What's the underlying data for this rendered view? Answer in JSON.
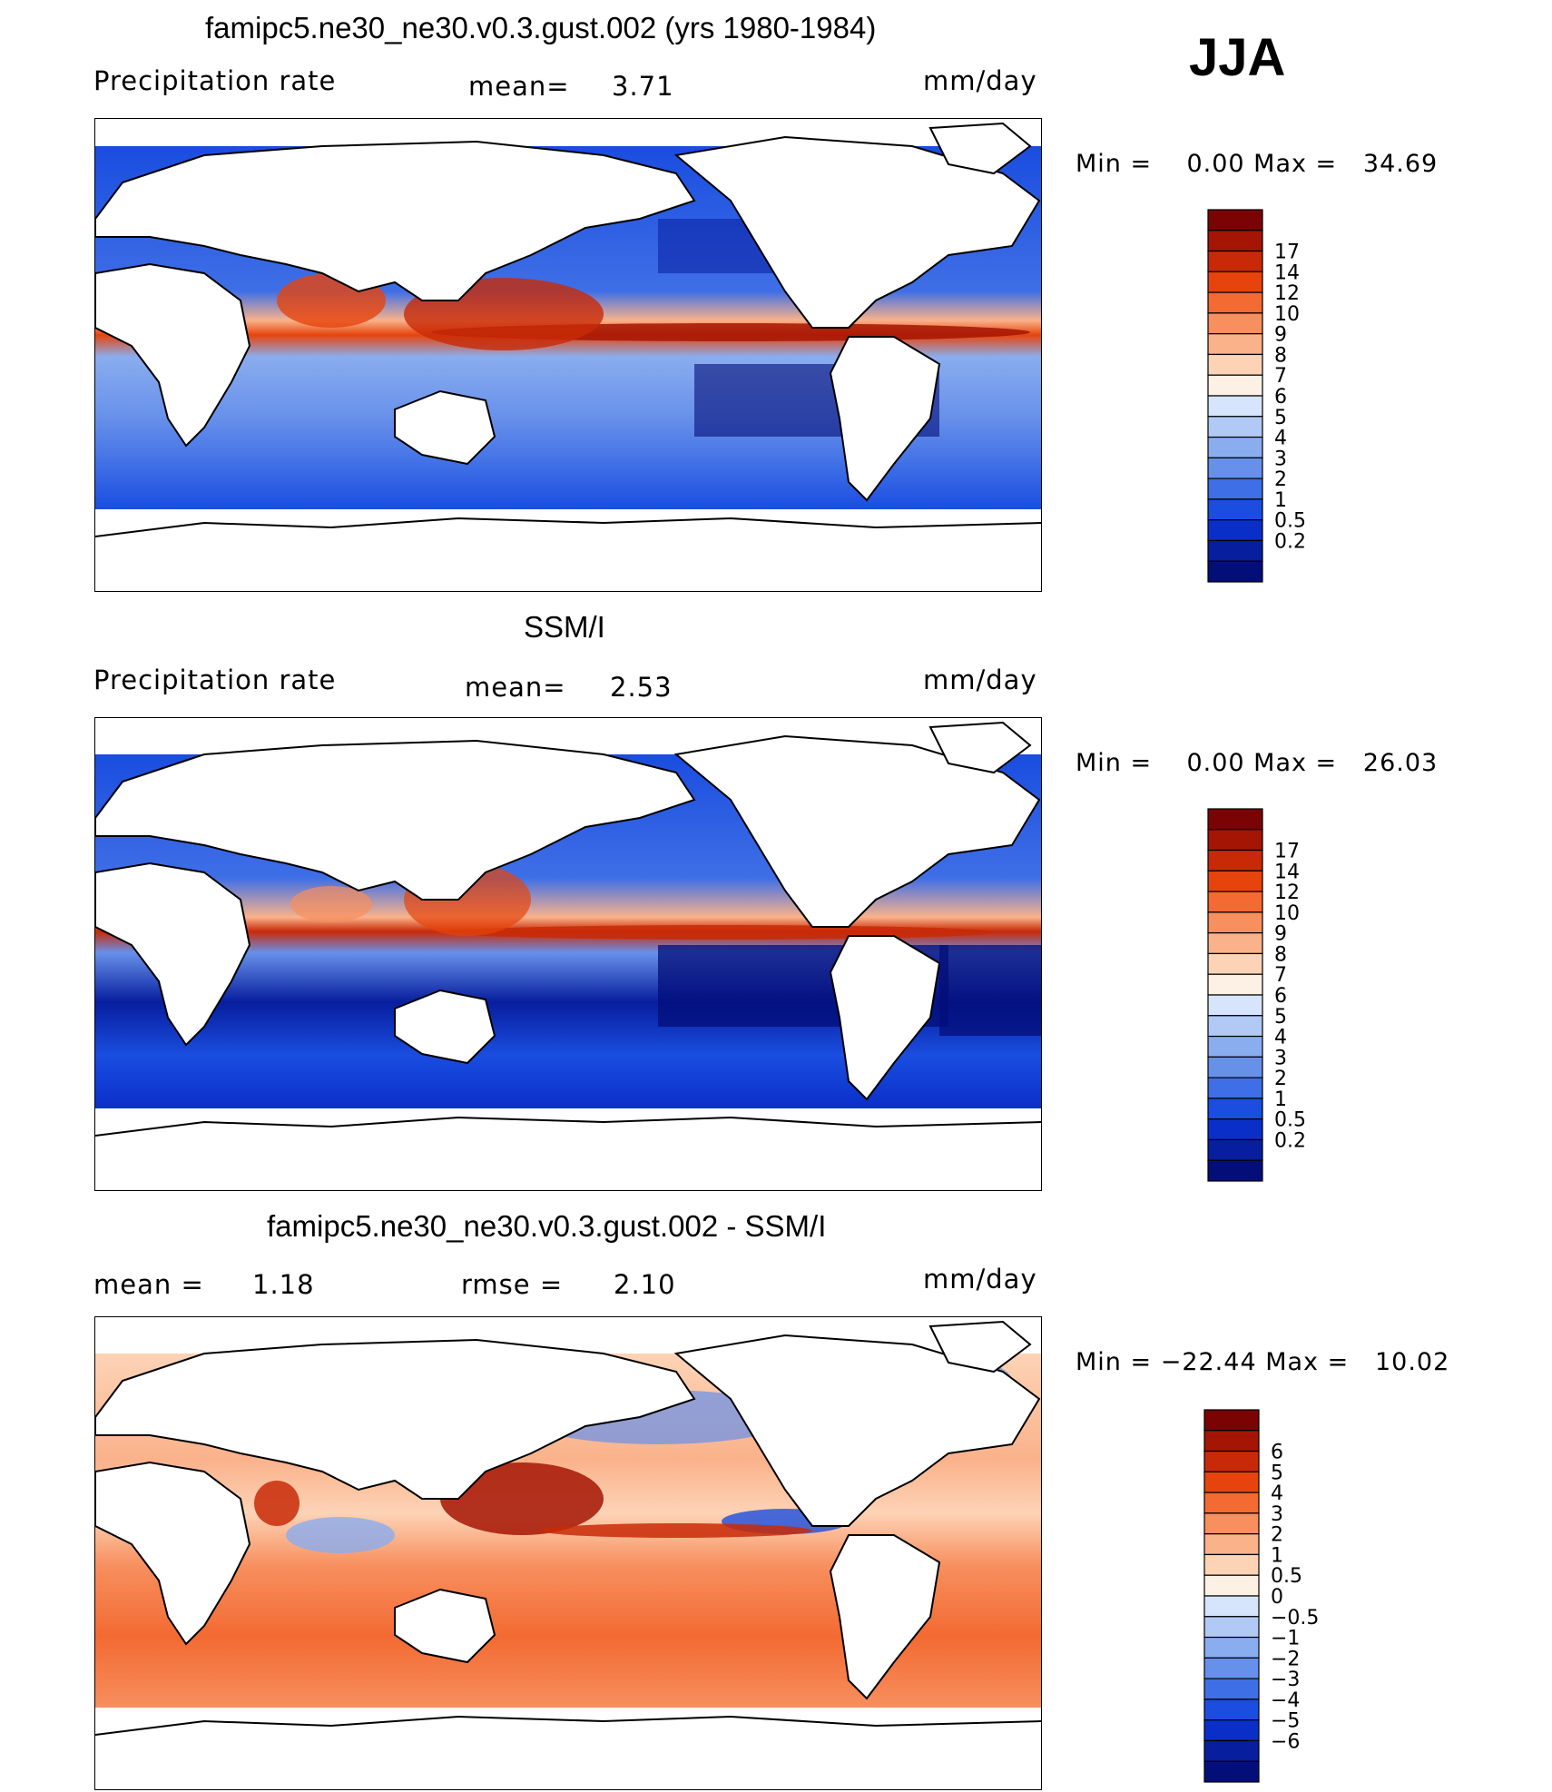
{
  "season": "JJA",
  "panels": [
    {
      "title": "famipc5.ne30_ne30.v0.3.gust.002 (yrs 1980-1984)",
      "left_label": "Precipitation rate",
      "center_label": "mean=",
      "center_value": "3.71",
      "units": "mm/day",
      "minmax": "Min =    0.00 Max =   34.69",
      "colorbar_labels": [
        "17",
        "14",
        "12",
        "10",
        "9",
        "8",
        "7",
        "6",
        "5",
        "4",
        "3",
        "2",
        "1",
        "0.5",
        "0.2"
      ],
      "colors": [
        "#7a0403",
        "#a51503",
        "#c82a07",
        "#e6440c",
        "#f36a32",
        "#f78f5e",
        "#fab28b",
        "#fdd3b6",
        "#fdf0e4",
        "#d6e5fb",
        "#b0c9f5",
        "#8aadef",
        "#6790ea",
        "#3f6fe6",
        "#1a4de0",
        "#0a2fc8",
        "#071e9e",
        "#030e78"
      ]
    },
    {
      "title": "SSM/I",
      "left_label": "Precipitation rate",
      "center_label": "mean=",
      "center_value": "2.53",
      "units": "mm/day",
      "minmax": "Min =    0.00 Max =   26.03",
      "colorbar_labels": [
        "17",
        "14",
        "12",
        "10",
        "9",
        "8",
        "7",
        "6",
        "5",
        "4",
        "3",
        "2",
        "1",
        "0.5",
        "0.2"
      ],
      "colors": [
        "#7a0403",
        "#a51503",
        "#c82a07",
        "#e6440c",
        "#f36a32",
        "#f78f5e",
        "#fab28b",
        "#fdd3b6",
        "#fdf0e4",
        "#d6e5fb",
        "#b0c9f5",
        "#8aadef",
        "#6790ea",
        "#3f6fe6",
        "#1a4de0",
        "#0a2fc8",
        "#071e9e",
        "#030e78"
      ]
    },
    {
      "title": "famipc5.ne30_ne30.v0.3.gust.002 - SSM/I",
      "left_label": "mean =",
      "left_value": "1.18",
      "center_label": "rmse =",
      "center_value": "2.10",
      "units": "mm/day",
      "minmax": "Min = −22.44 Max =   10.02",
      "colorbar_labels": [
        "6",
        "5",
        "4",
        "3",
        "2",
        "1",
        "0.5",
        "0",
        "−0.5",
        "−1",
        "−2",
        "−3",
        "−4",
        "−5",
        "−6"
      ],
      "colors": [
        "#7a0403",
        "#a51503",
        "#c82a07",
        "#e6440c",
        "#f36a32",
        "#f78f5e",
        "#fab28b",
        "#fdd3b6",
        "#fdf0e4",
        "#d6e5fb",
        "#b0c9f5",
        "#8aadef",
        "#6790ea",
        "#3f6fe6",
        "#1a4de0",
        "#0a2fc8",
        "#071e9e",
        "#030e78"
      ]
    }
  ]
}
